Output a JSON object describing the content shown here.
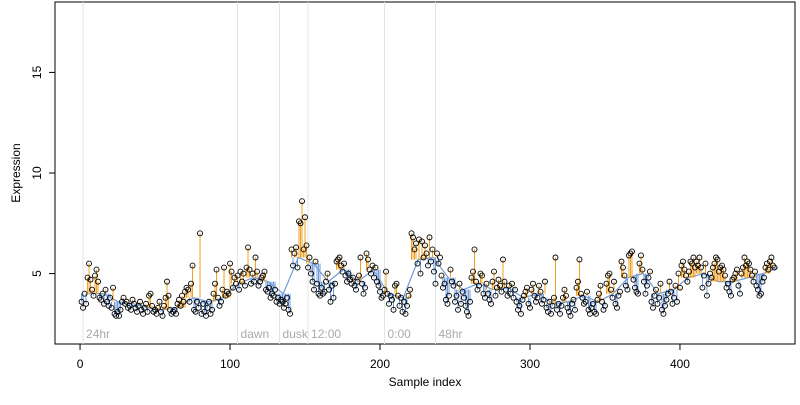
{
  "chart_data": {
    "type": "scatter",
    "xlabel": "Sample index",
    "ylabel": "Expression",
    "xlim": [
      -16.7,
      476.7
    ],
    "ylim": [
      1.5,
      18.5
    ],
    "xticks": [
      0,
      100,
      200,
      300,
      400
    ],
    "yticks": [
      5,
      10,
      15
    ],
    "point_color": "#000000",
    "above_color": "#f0a020",
    "below_color": "#6f9bd8",
    "fit_color": "#6f9bd8",
    "annotation_color": "#aaaaaa",
    "annotations": [
      {
        "text": "24hr",
        "x": 2
      },
      {
        "text": "dawn",
        "x": 105
      },
      {
        "text": "dusk",
        "x": 133
      },
      {
        "text": "12:00",
        "x": 152
      },
      {
        "text": "0:00",
        "x": 203
      },
      {
        "text": "48hr",
        "x": 237
      }
    ],
    "series": [
      {
        "name": "Expression",
        "values": [
          3.6,
          3.3,
          4.0,
          3.5,
          4.8,
          5.5,
          4.7,
          4.2,
          3.9,
          4.9,
          5.2,
          4.6,
          3.8,
          3.7,
          4.0,
          3.5,
          4.2,
          3.6,
          3.4,
          3.8,
          3.3,
          4.3,
          3.0,
          2.9,
          3.1,
          2.9,
          3.2,
          3.6,
          3.8,
          3.5,
          3.6,
          3.3,
          3.4,
          3.2,
          3.7,
          3.5,
          3.3,
          3.1,
          3.4,
          3.6,
          3.2,
          3.0,
          3.3,
          3.5,
          3.1,
          3.9,
          4.0,
          3.4,
          3.1,
          3.2,
          3.0,
          3.3,
          3.6,
          3.1,
          2.9,
          3.4,
          3.8,
          4.6,
          3.9,
          3.2,
          3.0,
          3.1,
          3.2,
          3.0,
          3.5,
          3.7,
          3.4,
          3.9,
          3.6,
          4.1,
          4.3,
          4.2,
          3.6,
          4.5,
          5.4,
          3.2,
          3.1,
          3.6,
          3.3,
          7.0,
          3.0,
          3.5,
          3.1,
          2.9,
          3.3,
          3.6,
          3.0,
          3.2,
          4.0,
          4.5,
          5.2,
          3.8,
          3.4,
          3.6,
          4.2,
          5.3,
          3.9,
          4.1,
          4.0,
          5.5,
          5.1,
          4.3,
          4.8,
          4.5,
          4.9,
          4.2,
          5.1,
          4.6,
          5.0,
          4.4,
          5.3,
          6.3,
          5.2,
          4.5,
          5.0,
          4.6,
          5.8,
          5.1,
          4.4,
          4.6,
          4.8,
          4.9,
          5.1,
          4.2,
          4.1,
          4.3,
          3.8,
          4.0,
          3.9,
          4.2,
          3.6,
          3.8,
          3.5,
          3.7,
          3.6,
          3.3,
          3.5,
          3.8,
          3.2,
          3.0,
          6.2,
          5.4,
          6.0,
          6.3,
          5.3,
          7.6,
          7.5,
          8.6,
          6.2,
          7.8,
          6.4,
          5.3,
          5.8,
          5.0,
          4.6,
          4.2,
          5.6,
          4.5,
          4.0,
          3.9,
          4.3,
          4.0,
          4.1,
          4.6,
          5.0,
          4.2,
          3.6,
          4.4,
          3.8,
          4.5,
          5.6,
          5.7,
          5.8,
          5.4,
          5.1,
          5.5,
          4.9,
          4.6,
          5.0,
          4.7,
          4.5,
          4.8,
          4.4,
          4.2,
          4.6,
          4.9,
          5.8,
          4.5,
          4.0,
          4.3,
          6.0,
          5.7,
          5.2,
          5.0,
          5.4,
          4.8,
          5.3,
          4.6,
          4.4,
          4.1,
          3.8,
          3.9,
          4.2,
          5.1,
          4.0,
          3.5,
          3.9,
          3.7,
          3.2,
          4.4,
          4.5,
          3.9,
          3.4,
          3.8,
          3.1,
          3.6,
          3.0,
          3.4,
          3.9,
          4.2,
          7.0,
          6.8,
          6.2,
          6.5,
          5.5,
          6.7,
          5.0,
          6.6,
          5.8,
          6.4,
          6.0,
          5.4,
          6.8,
          5.6,
          6.2,
          5.1,
          4.5,
          6.0,
          5.5,
          5.8,
          4.9,
          4.3,
          4.5,
          3.7,
          3.5,
          3.9,
          5.2,
          4.6,
          4.4,
          3.6,
          3.9,
          3.2,
          4.5,
          3.5,
          4.1,
          3.8,
          3.4,
          3.1,
          2.9,
          3.6,
          4.8,
          5.1,
          6.2,
          4.6,
          4.2,
          4.4,
          5.0,
          4.9,
          4.0,
          3.8,
          4.5,
          4.0,
          3.7,
          3.5,
          4.6,
          5.1,
          3.9,
          4.3,
          4.7,
          4.4,
          4.1,
          5.7,
          4.6,
          4.2,
          3.9,
          4.4,
          4.0,
          4.5,
          3.8,
          4.2,
          3.6,
          3.2,
          3.4,
          3.0,
          3.7,
          3.9,
          4.1,
          4.3,
          3.5,
          3.3,
          4.2,
          4.5,
          3.9,
          3.6,
          3.8,
          4.4,
          4.1,
          3.5,
          3.7,
          4.6,
          3.3,
          3.1,
          3.6,
          3.0,
          3.4,
          3.8,
          5.8,
          3.2,
          3.5,
          3.0,
          3.4,
          3.8,
          4.2,
          3.9,
          3.3,
          3.1,
          2.9,
          3.5,
          3.7,
          3.2,
          4.3,
          4.6,
          5.7,
          4.0,
          3.8,
          3.5,
          3.6,
          4.1,
          3.2,
          3.0,
          3.3,
          3.5,
          3.1,
          3.0,
          3.7,
          4.0,
          4.4,
          3.6,
          3.2,
          3.4,
          4.5,
          4.9,
          5.0,
          4.2,
          3.8,
          4.6,
          3.5,
          3.3,
          3.9,
          4.1,
          5.6,
          5.3,
          4.9,
          4.4,
          4.2,
          5.9,
          6.0,
          6.1,
          4.7,
          4.3,
          4.1,
          4.0,
          5.5,
          5.9,
          5.2,
          4.6,
          4.0,
          4.4,
          4.8,
          5.1,
          3.6,
          3.3,
          3.9,
          4.2,
          3.5,
          3.8,
          4.5,
          3.2,
          3.0,
          3.4,
          3.7,
          4.0,
          4.6,
          4.1,
          3.5,
          3.8,
          4.4,
          3.6,
          5.0,
          4.3,
          5.4,
          5.6,
          5.2,
          4.9,
          4.6,
          5.1,
          5.6,
          5.5,
          5.8,
          5.3,
          5.6,
          5.4,
          5.8,
          5.3,
          4.3,
          4.9,
          5.5,
          3.9,
          4.5,
          5.0,
          4.8,
          5.3,
          5.5,
          5.8,
          5.7,
          5.1,
          5.3,
          5.4,
          5.2,
          4.9,
          4.3,
          4.5,
          4.1,
          3.9,
          4.7,
          4.8,
          5.0,
          5.2,
          4.4,
          4.0,
          5.0,
          5.3,
          5.8,
          5.4,
          5.6,
          5.5,
          5.2,
          4.9,
          4.6,
          5.1,
          4.4,
          4.2,
          3.9,
          4.0,
          4.6,
          4.8,
          5.3,
          5.5,
          5.2,
          5.6,
          5.8,
          5.4,
          5.3
        ]
      },
      {
        "name": "Fit",
        "values": [
          4.0,
          4.0,
          3.6,
          3.5,
          3.3,
          3.2,
          3.3,
          3.8,
          3.6,
          3.8,
          4.5,
          4.8,
          4.6,
          4.0,
          5.8,
          5.5,
          4.6,
          5.2,
          4.6,
          5.2,
          4.0,
          3.8,
          5.7,
          5.8,
          4.8,
          4.2,
          4.5,
          4.2,
          4.3,
          3.8,
          4.0,
          3.5,
          3.6,
          3.9,
          3.6,
          4.0,
          4.8,
          5.0,
          4.0,
          4.2,
          4.8,
          5.0,
          4.6,
          4.6,
          4.8,
          5.0,
          5.3
        ]
      }
    ]
  }
}
